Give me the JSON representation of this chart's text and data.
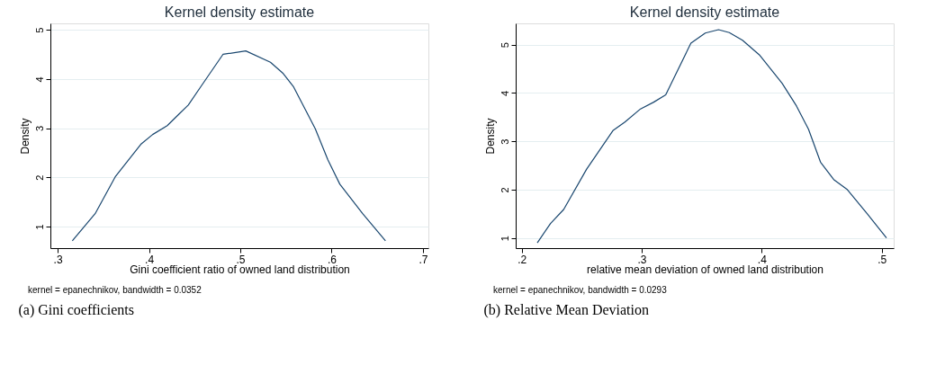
{
  "chart_data": [
    {
      "type": "line",
      "title": "Kernel density estimate",
      "xlabel": "Gini coefficient ratio of owned land distribution",
      "ylabel": "Density",
      "color": "#1a476f",
      "grid": "y",
      "line_style": "solid",
      "x": [
        0.316,
        0.341,
        0.363,
        0.391,
        0.404,
        0.42,
        0.432,
        0.443,
        0.457,
        0.481,
        0.506,
        0.533,
        0.547,
        0.558,
        0.582,
        0.596,
        0.609,
        0.634,
        0.659
      ],
      "values": [
        0.71,
        1.26,
        2.01,
        2.67,
        2.87,
        3.05,
        3.27,
        3.47,
        3.85,
        4.5,
        4.57,
        4.34,
        4.11,
        3.85,
        2.99,
        2.35,
        1.86,
        1.26,
        0.71
      ],
      "xlim": [
        0.292,
        0.706
      ],
      "ylim": [
        0.56,
        5.13
      ],
      "xticks": [
        {
          "value": 0.3,
          "label": ".3"
        },
        {
          "value": 0.4,
          "label": ".4"
        },
        {
          "value": 0.5,
          "label": ".5"
        },
        {
          "value": 0.6,
          "label": ".6"
        },
        {
          "value": 0.7,
          "label": ".7"
        }
      ],
      "yticks": [
        1,
        2,
        3,
        4,
        5
      ],
      "annotations": [
        "kernel = epanechnikov, bandwidth = 0.0352",
        "(a) Gini coefficients"
      ]
    },
    {
      "type": "line",
      "title": "Kernel density estimate",
      "xlabel": "relative mean deviation of owned land distribution",
      "ylabel": "Density",
      "color": "#1a476f",
      "grid": "y",
      "line_style": "solid",
      "x": [
        0.213,
        0.224,
        0.235,
        0.254,
        0.276,
        0.286,
        0.299,
        0.31,
        0.32,
        0.341,
        0.353,
        0.364,
        0.373,
        0.384,
        0.398,
        0.417,
        0.429,
        0.439,
        0.449,
        0.46,
        0.471,
        0.488,
        0.504
      ],
      "values": [
        0.9,
        1.3,
        1.59,
        2.42,
        3.22,
        3.4,
        3.67,
        3.81,
        3.96,
        5.03,
        5.24,
        5.31,
        5.25,
        5.09,
        4.79,
        4.2,
        3.73,
        3.25,
        2.57,
        2.21,
        2.01,
        1.5,
        1.0
      ],
      "xlim": [
        0.195,
        0.51
      ],
      "ylim": [
        0.79,
        5.44
      ],
      "xticks": [
        {
          "value": 0.2,
          "label": ".2"
        },
        {
          "value": 0.3,
          "label": ".3"
        },
        {
          "value": 0.4,
          "label": ".4"
        },
        {
          "value": 0.5,
          "label": ".5"
        }
      ],
      "yticks": [
        1,
        2,
        3,
        4,
        5
      ],
      "annotations": [
        "kernel = epanechnikov, bandwidth = 0.0293",
        "(b) Relative Mean Deviation"
      ]
    }
  ]
}
